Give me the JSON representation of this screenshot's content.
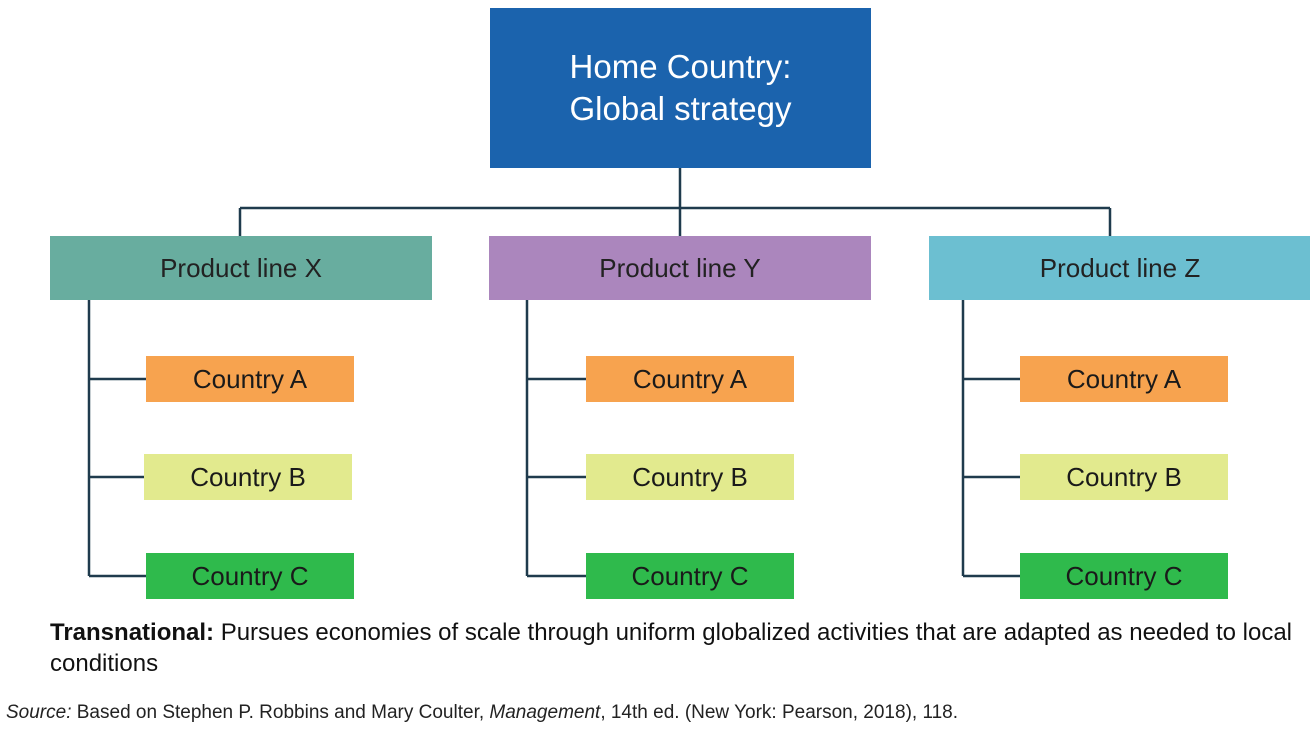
{
  "root": {
    "line1": "Home Country:",
    "line2": "Global strategy"
  },
  "product_lines": [
    {
      "label": "Product line X",
      "color": "#68ad9f",
      "countries": [
        "Country A",
        "Country B",
        "Country C"
      ]
    },
    {
      "label": "Product line Y",
      "color": "#ab86bd",
      "countries": [
        "Country A",
        "Country B",
        "Country C"
      ]
    },
    {
      "label": "Product line Z",
      "color": "#6cbfd1",
      "countries": [
        "Country A",
        "Country B",
        "Country C"
      ]
    }
  ],
  "caption": {
    "term": "Transnational:",
    "text": " Pursues economies of scale through uniform globalized activities that are adapted as needed to local conditions"
  },
  "source": {
    "label": "Source:",
    "pre": " Based on Stephen P. Robbins and Mary Coulter, ",
    "title": "Management",
    "post": ", 14th ed. (New York: Pearson, 2018), 118."
  },
  "colors": {
    "root": "#1b63ad",
    "country_a": "#f7a34f",
    "country_b": "#e2ea8e",
    "country_c": "#2fba4c",
    "connector": "#1f3b4d"
  }
}
